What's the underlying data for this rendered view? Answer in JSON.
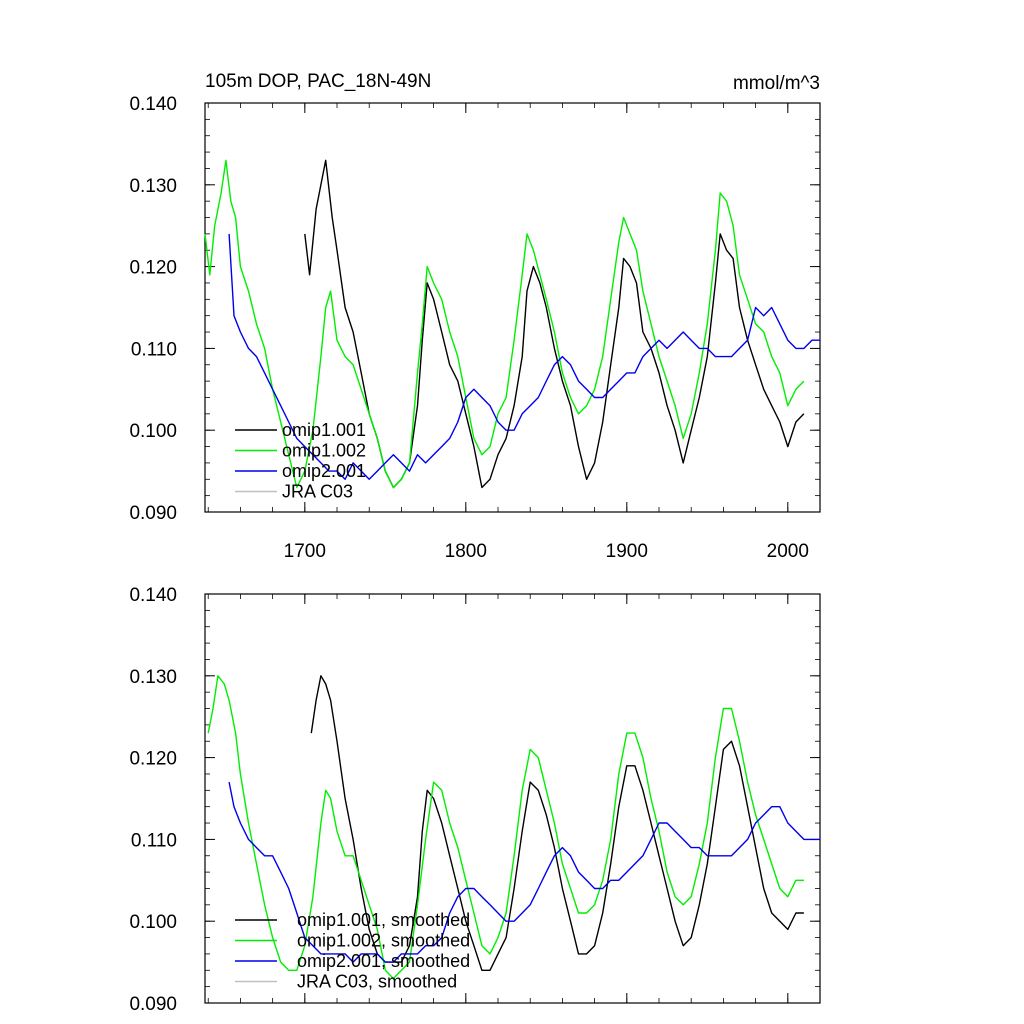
{
  "chart_data": [
    {
      "type": "line",
      "title": "105m DOP, PAC_18N-49N",
      "units": "mmol/m^3",
      "xlim": [
        1638,
        2020
      ],
      "ylim": [
        0.09,
        0.14
      ],
      "xticks": [
        1700,
        1800,
        1900,
        2000
      ],
      "xtick_labels": [
        "1700",
        "1800",
        "1900",
        "2000"
      ],
      "yticks": [
        0.09,
        0.1,
        0.11,
        0.12,
        0.13,
        0.14
      ],
      "ytick_labels": [
        "0.090",
        "0.100",
        "0.110",
        "0.120",
        "0.130",
        "0.140"
      ],
      "legend_position": "bottom-left",
      "series": [
        {
          "name": "omip1.001",
          "color": "#000000",
          "x": [
            1700,
            1703,
            1707,
            1710,
            1713,
            1717,
            1720,
            1725,
            1730,
            1735,
            1740,
            1745,
            1750,
            1755,
            1760,
            1765,
            1770,
            1773,
            1776,
            1780,
            1785,
            1790,
            1795,
            1800,
            1805,
            1810,
            1815,
            1820,
            1825,
            1830,
            1835,
            1838,
            1842,
            1846,
            1850,
            1855,
            1860,
            1865,
            1870,
            1875,
            1880,
            1885,
            1890,
            1895,
            1898,
            1902,
            1906,
            1910,
            1915,
            1920,
            1925,
            1930,
            1935,
            1940,
            1945,
            1950,
            1955,
            1958,
            1962,
            1966,
            1970,
            1975,
            1980,
            1985,
            1990,
            1995,
            2000,
            2005,
            2010
          ],
          "y": [
            0.124,
            0.119,
            0.127,
            0.13,
            0.133,
            0.126,
            0.122,
            0.115,
            0.112,
            0.107,
            0.102,
            0.099,
            0.095,
            0.093,
            0.094,
            0.096,
            0.103,
            0.111,
            0.118,
            0.116,
            0.112,
            0.108,
            0.106,
            0.102,
            0.098,
            0.093,
            0.094,
            0.097,
            0.099,
            0.103,
            0.109,
            0.117,
            0.12,
            0.118,
            0.115,
            0.11,
            0.106,
            0.103,
            0.098,
            0.094,
            0.096,
            0.101,
            0.108,
            0.115,
            0.121,
            0.12,
            0.118,
            0.112,
            0.11,
            0.107,
            0.103,
            0.1,
            0.096,
            0.1,
            0.104,
            0.109,
            0.118,
            0.124,
            0.122,
            0.121,
            0.115,
            0.111,
            0.108,
            0.105,
            0.103,
            0.101,
            0.098,
            0.101,
            0.102
          ]
        },
        {
          "name": "omip1.002",
          "color": "#00ee00",
          "x": [
            1638,
            1641,
            1644,
            1648,
            1651,
            1654,
            1657,
            1660,
            1665,
            1670,
            1675,
            1680,
            1685,
            1690,
            1695,
            1700,
            1705,
            1710,
            1713,
            1716,
            1720,
            1725,
            1730,
            1735,
            1740,
            1745,
            1750,
            1755,
            1760,
            1765,
            1770,
            1773,
            1776,
            1780,
            1785,
            1790,
            1795,
            1800,
            1805,
            1810,
            1815,
            1820,
            1825,
            1830,
            1835,
            1838,
            1842,
            1846,
            1850,
            1855,
            1860,
            1865,
            1870,
            1875,
            1880,
            1885,
            1890,
            1895,
            1898,
            1902,
            1906,
            1910,
            1915,
            1920,
            1925,
            1930,
            1935,
            1940,
            1945,
            1950,
            1955,
            1958,
            1962,
            1966,
            1970,
            1975,
            1980,
            1985,
            1990,
            1995,
            2000,
            2005,
            2010
          ],
          "y": [
            0.124,
            0.119,
            0.125,
            0.129,
            0.133,
            0.128,
            0.126,
            0.12,
            0.117,
            0.113,
            0.11,
            0.105,
            0.101,
            0.097,
            0.093,
            0.095,
            0.1,
            0.109,
            0.115,
            0.117,
            0.111,
            0.109,
            0.108,
            0.105,
            0.102,
            0.099,
            0.095,
            0.093,
            0.094,
            0.096,
            0.107,
            0.113,
            0.12,
            0.118,
            0.116,
            0.112,
            0.109,
            0.104,
            0.099,
            0.097,
            0.098,
            0.102,
            0.104,
            0.111,
            0.119,
            0.124,
            0.122,
            0.119,
            0.116,
            0.112,
            0.107,
            0.104,
            0.102,
            0.103,
            0.105,
            0.109,
            0.116,
            0.123,
            0.126,
            0.124,
            0.122,
            0.117,
            0.113,
            0.109,
            0.106,
            0.103,
            0.099,
            0.102,
            0.107,
            0.113,
            0.122,
            0.129,
            0.128,
            0.125,
            0.119,
            0.116,
            0.113,
            0.112,
            0.109,
            0.107,
            0.103,
            0.105,
            0.106
          ]
        },
        {
          "name": "omip2.001",
          "color": "#0000ee",
          "x": [
            1653,
            1656,
            1660,
            1665,
            1670,
            1675,
            1680,
            1685,
            1690,
            1695,
            1700,
            1705,
            1710,
            1715,
            1720,
            1725,
            1730,
            1735,
            1740,
            1745,
            1750,
            1755,
            1760,
            1765,
            1770,
            1775,
            1780,
            1785,
            1790,
            1795,
            1800,
            1805,
            1810,
            1815,
            1820,
            1825,
            1830,
            1835,
            1840,
            1845,
            1850,
            1855,
            1860,
            1865,
            1870,
            1875,
            1880,
            1885,
            1890,
            1895,
            1900,
            1905,
            1910,
            1915,
            1920,
            1925,
            1930,
            1935,
            1940,
            1945,
            1950,
            1955,
            1960,
            1965,
            1970,
            1975,
            1980,
            1985,
            1990,
            1995,
            2000,
            2005,
            2010,
            2015,
            2020
          ],
          "y": [
            0.124,
            0.114,
            0.112,
            0.11,
            0.109,
            0.107,
            0.105,
            0.103,
            0.101,
            0.099,
            0.098,
            0.097,
            0.096,
            0.095,
            0.095,
            0.094,
            0.096,
            0.095,
            0.094,
            0.095,
            0.096,
            0.097,
            0.096,
            0.095,
            0.097,
            0.096,
            0.097,
            0.098,
            0.099,
            0.101,
            0.104,
            0.105,
            0.104,
            0.103,
            0.101,
            0.1,
            0.1,
            0.102,
            0.103,
            0.104,
            0.106,
            0.108,
            0.109,
            0.108,
            0.106,
            0.105,
            0.104,
            0.104,
            0.105,
            0.106,
            0.107,
            0.107,
            0.109,
            0.11,
            0.111,
            0.11,
            0.111,
            0.112,
            0.111,
            0.11,
            0.11,
            0.109,
            0.109,
            0.109,
            0.11,
            0.111,
            0.115,
            0.114,
            0.115,
            0.113,
            0.111,
            0.11,
            0.11,
            0.111,
            0.111
          ]
        },
        {
          "name": "JRA C03",
          "color": "#c0c0c0",
          "x": [],
          "y": []
        }
      ]
    },
    {
      "type": "line",
      "title": "",
      "xlim": [
        1638,
        2020
      ],
      "ylim": [
        0.09,
        0.14
      ],
      "xticks": [
        1700,
        1800,
        1900,
        2000
      ],
      "yticks": [
        0.09,
        0.1,
        0.11,
        0.12,
        0.13,
        0.14
      ],
      "ytick_labels": [
        "0.090",
        "0.100",
        "0.110",
        "0.120",
        "0.130",
        "0.140"
      ],
      "legend_position": "bottom-left",
      "series": [
        {
          "name": "omip1.001, smoothed",
          "color": "#000000",
          "x": [
            1704,
            1707,
            1710,
            1713,
            1716,
            1720,
            1725,
            1730,
            1735,
            1740,
            1745,
            1750,
            1755,
            1760,
            1765,
            1770,
            1773,
            1776,
            1780,
            1785,
            1790,
            1795,
            1800,
            1805,
            1810,
            1815,
            1820,
            1825,
            1830,
            1835,
            1840,
            1845,
            1850,
            1855,
            1860,
            1865,
            1870,
            1875,
            1880,
            1885,
            1890,
            1895,
            1900,
            1905,
            1910,
            1915,
            1920,
            1925,
            1930,
            1935,
            1940,
            1945,
            1950,
            1955,
            1960,
            1965,
            1970,
            1975,
            1980,
            1985,
            1990,
            1995,
            2000,
            2005,
            2010
          ],
          "y": [
            0.123,
            0.127,
            0.13,
            0.129,
            0.127,
            0.122,
            0.115,
            0.11,
            0.104,
            0.099,
            0.096,
            0.095,
            0.095,
            0.095,
            0.097,
            0.103,
            0.111,
            0.116,
            0.115,
            0.112,
            0.108,
            0.104,
            0.1,
            0.097,
            0.094,
            0.094,
            0.096,
            0.098,
            0.104,
            0.111,
            0.117,
            0.116,
            0.113,
            0.109,
            0.104,
            0.1,
            0.096,
            0.096,
            0.097,
            0.101,
            0.107,
            0.114,
            0.119,
            0.119,
            0.116,
            0.112,
            0.108,
            0.104,
            0.1,
            0.097,
            0.098,
            0.102,
            0.107,
            0.114,
            0.121,
            0.122,
            0.119,
            0.114,
            0.109,
            0.104,
            0.101,
            0.1,
            0.099,
            0.101,
            0.101
          ]
        },
        {
          "name": "omip1.002, smoothed",
          "color": "#00ee00",
          "x": [
            1640,
            1643,
            1646,
            1650,
            1653,
            1657,
            1660,
            1665,
            1670,
            1675,
            1680,
            1685,
            1690,
            1695,
            1700,
            1705,
            1710,
            1713,
            1716,
            1720,
            1725,
            1730,
            1735,
            1740,
            1745,
            1750,
            1755,
            1760,
            1765,
            1770,
            1775,
            1780,
            1785,
            1790,
            1795,
            1800,
            1805,
            1810,
            1815,
            1820,
            1825,
            1830,
            1835,
            1840,
            1845,
            1850,
            1855,
            1860,
            1865,
            1870,
            1875,
            1880,
            1885,
            1890,
            1895,
            1900,
            1905,
            1910,
            1915,
            1920,
            1925,
            1930,
            1935,
            1940,
            1945,
            1950,
            1955,
            1960,
            1965,
            1970,
            1975,
            1980,
            1985,
            1990,
            1995,
            2000,
            2005,
            2010
          ],
          "y": [
            0.123,
            0.126,
            0.13,
            0.129,
            0.127,
            0.123,
            0.118,
            0.112,
            0.107,
            0.102,
            0.098,
            0.095,
            0.094,
            0.094,
            0.097,
            0.103,
            0.112,
            0.116,
            0.115,
            0.111,
            0.108,
            0.108,
            0.105,
            0.102,
            0.099,
            0.094,
            0.093,
            0.094,
            0.095,
            0.102,
            0.11,
            0.117,
            0.116,
            0.112,
            0.109,
            0.105,
            0.101,
            0.097,
            0.096,
            0.098,
            0.101,
            0.108,
            0.116,
            0.121,
            0.12,
            0.116,
            0.112,
            0.107,
            0.104,
            0.101,
            0.101,
            0.102,
            0.105,
            0.11,
            0.118,
            0.123,
            0.123,
            0.12,
            0.115,
            0.111,
            0.106,
            0.103,
            0.102,
            0.103,
            0.107,
            0.112,
            0.12,
            0.126,
            0.126,
            0.122,
            0.117,
            0.113,
            0.11,
            0.107,
            0.104,
            0.103,
            0.105,
            0.105
          ]
        },
        {
          "name": "omip2.001, smoothed",
          "color": "#0000ee",
          "x": [
            1653,
            1656,
            1660,
            1665,
            1670,
            1675,
            1680,
            1685,
            1690,
            1695,
            1700,
            1705,
            1710,
            1715,
            1720,
            1725,
            1730,
            1735,
            1740,
            1745,
            1750,
            1755,
            1760,
            1765,
            1770,
            1775,
            1780,
            1785,
            1790,
            1795,
            1800,
            1805,
            1810,
            1815,
            1820,
            1825,
            1830,
            1835,
            1840,
            1845,
            1850,
            1855,
            1860,
            1865,
            1870,
            1875,
            1880,
            1885,
            1890,
            1895,
            1900,
            1905,
            1910,
            1915,
            1920,
            1925,
            1930,
            1935,
            1940,
            1945,
            1950,
            1955,
            1960,
            1965,
            1970,
            1975,
            1980,
            1985,
            1990,
            1995,
            2000,
            2005,
            2010,
            2015,
            2020
          ],
          "y": [
            0.117,
            0.114,
            0.112,
            0.11,
            0.109,
            0.108,
            0.108,
            0.106,
            0.104,
            0.101,
            0.098,
            0.097,
            0.096,
            0.096,
            0.096,
            0.096,
            0.095,
            0.096,
            0.096,
            0.096,
            0.095,
            0.095,
            0.096,
            0.096,
            0.096,
            0.097,
            0.097,
            0.098,
            0.101,
            0.103,
            0.104,
            0.104,
            0.103,
            0.102,
            0.101,
            0.1,
            0.1,
            0.101,
            0.102,
            0.104,
            0.106,
            0.108,
            0.109,
            0.108,
            0.106,
            0.105,
            0.104,
            0.104,
            0.105,
            0.105,
            0.106,
            0.107,
            0.108,
            0.11,
            0.112,
            0.112,
            0.111,
            0.11,
            0.109,
            0.109,
            0.108,
            0.108,
            0.108,
            0.108,
            0.109,
            0.11,
            0.112,
            0.113,
            0.114,
            0.114,
            0.112,
            0.111,
            0.11,
            0.11,
            0.11
          ]
        },
        {
          "name": "JRA C03, smoothed",
          "color": "#c0c0c0",
          "x": [],
          "y": []
        }
      ]
    }
  ]
}
